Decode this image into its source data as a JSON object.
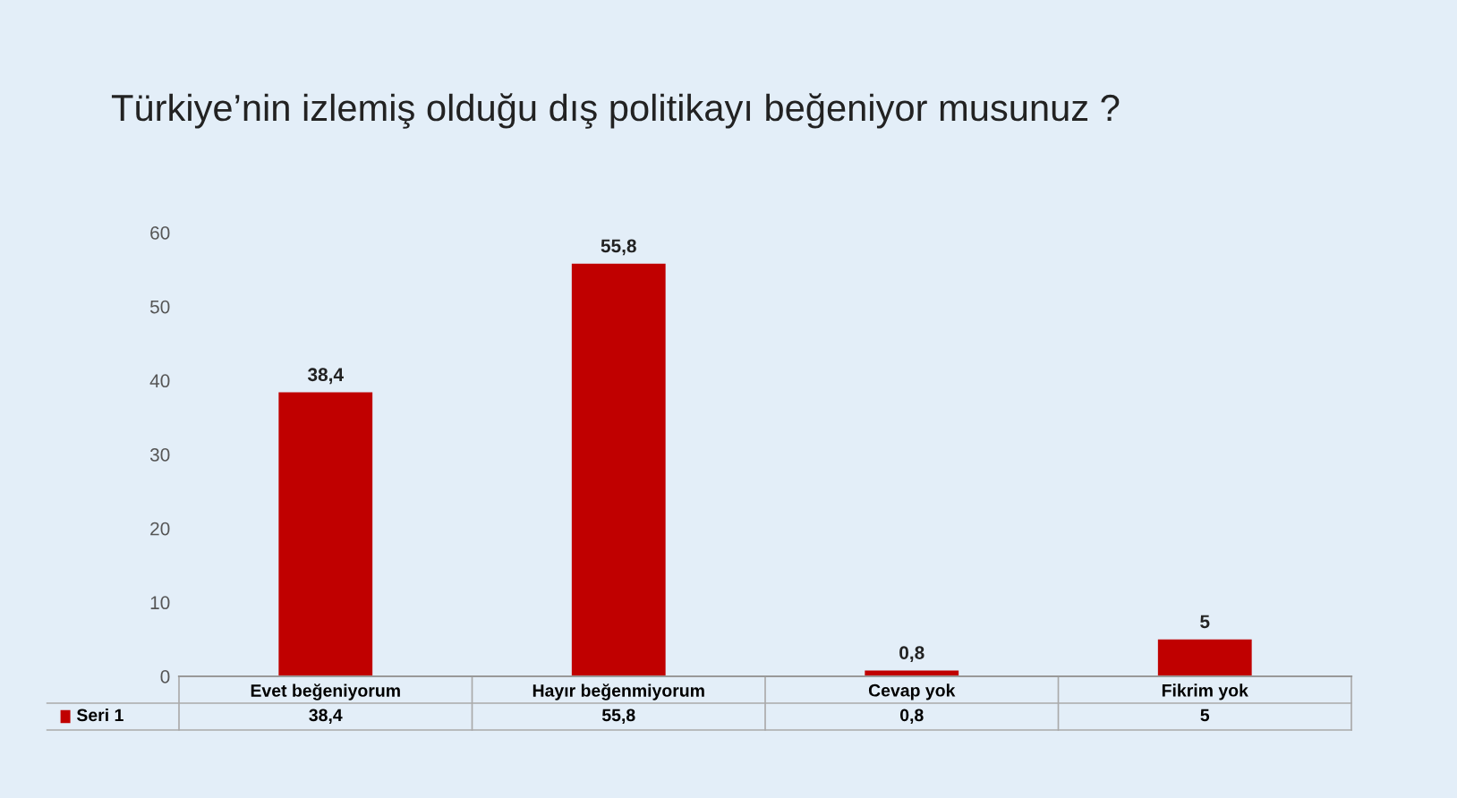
{
  "chart_data": {
    "type": "bar",
    "title": "Türkiye’nin izlemiş olduğu dış politikayı beğeniyor musunuz ?",
    "categories": [
      "Evet beğeniyorum",
      "Hayır beğenmiyorum",
      "Cevap yok",
      "Fikrim yok"
    ],
    "series": [
      {
        "name": "Seri 1",
        "color": "#c00000",
        "values": [
          38.4,
          55.8,
          0.8,
          5
        ]
      }
    ],
    "value_labels": [
      "38,4",
      "55,8",
      "0,8",
      "5"
    ],
    "ylim": [
      0,
      60
    ],
    "yticks": [
      0,
      10,
      20,
      30,
      40,
      50,
      60
    ],
    "legend": "bottom",
    "grid": false
  }
}
